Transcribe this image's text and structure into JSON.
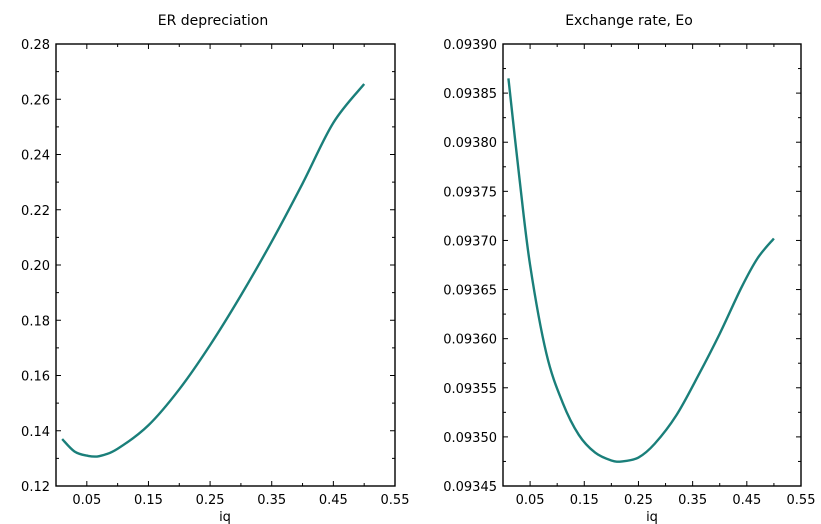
{
  "chart_data": [
    {
      "type": "line",
      "title": "ER depreciation",
      "xlabel": "iq",
      "ylabel": "",
      "xlim": [
        0.0,
        0.55
      ],
      "ylim": [
        0.12,
        0.28
      ],
      "xticks": [
        0.05,
        0.15,
        0.25,
        0.35,
        0.45,
        0.55
      ],
      "xtick_labels": [
        "0.05",
        "0.15",
        "0.25",
        "0.35",
        "0.45",
        "0.55"
      ],
      "yticks": [
        0.12,
        0.14,
        0.16,
        0.18,
        0.2,
        0.22,
        0.24,
        0.26,
        0.28
      ],
      "ytick_labels": [
        "0.12",
        "0.14",
        "0.16",
        "0.18",
        "0.20",
        "0.22",
        "0.24",
        "0.26",
        "0.28"
      ],
      "grid": false,
      "series": [
        {
          "color": "#1a7f7a",
          "x": [
            0.01,
            0.03,
            0.05,
            0.07,
            0.1,
            0.15,
            0.2,
            0.25,
            0.3,
            0.35,
            0.4,
            0.45,
            0.5
          ],
          "y": [
            0.137,
            0.1325,
            0.131,
            0.1308,
            0.1335,
            0.142,
            0.155,
            0.171,
            0.189,
            0.2085,
            0.2295,
            0.2515,
            0.2655
          ]
        }
      ]
    },
    {
      "type": "line",
      "title": "Exchange rate, Eo",
      "xlabel": "iq",
      "ylabel": "",
      "xlim": [
        0.0,
        0.55
      ],
      "ylim": [
        0.09345,
        0.0939
      ],
      "xticks": [
        0.05,
        0.15,
        0.25,
        0.35,
        0.45,
        0.55
      ],
      "xtick_labels": [
        "0.05",
        "0.15",
        "0.25",
        "0.35",
        "0.45",
        "0.55"
      ],
      "yticks": [
        0.09345,
        0.0935,
        0.09355,
        0.0936,
        0.09365,
        0.0937,
        0.09375,
        0.0938,
        0.09385,
        0.0939
      ],
      "ytick_labels": [
        "0.09345",
        "0.09350",
        "0.09355",
        "0.09360",
        "0.09365",
        "0.09370",
        "0.09375",
        "0.09380",
        "0.09385",
        "0.09390"
      ],
      "grid": false,
      "series": [
        {
          "color": "#1a7f7a",
          "x": [
            0.01,
            0.03,
            0.05,
            0.08,
            0.11,
            0.14,
            0.17,
            0.2,
            0.22,
            0.25,
            0.28,
            0.32,
            0.36,
            0.4,
            0.44,
            0.47,
            0.5
          ],
          "y": [
            0.093865,
            0.093765,
            0.093675,
            0.093585,
            0.093535,
            0.093502,
            0.093484,
            0.093476,
            0.093475,
            0.093479,
            0.093493,
            0.093522,
            0.093562,
            0.093605,
            0.093652,
            0.093682,
            0.093702
          ]
        }
      ]
    }
  ]
}
